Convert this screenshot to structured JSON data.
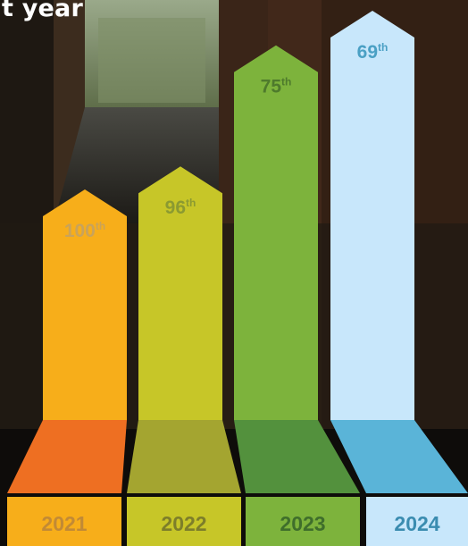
{
  "heading": "t year",
  "chart_data": {
    "type": "bar",
    "categories": [
      "2021",
      "2022",
      "2023",
      "2024"
    ],
    "values": [
      100,
      96,
      75,
      69
    ],
    "rank_labels": [
      {
        "num": "100",
        "suffix": "th"
      },
      {
        "num": "96",
        "suffix": "th"
      },
      {
        "num": "75",
        "suffix": "th"
      },
      {
        "num": "69",
        "suffix": "th"
      }
    ],
    "title": "",
    "xlabel": "",
    "ylabel": "",
    "ylim": [
      60,
      110
    ],
    "y_inverted": true,
    "grid": false,
    "legend": "none",
    "colors": {
      "top": [
        "#f7ae1a",
        "#c7c628",
        "#7db33c",
        "#c8e7fb"
      ],
      "side": [
        "#ee6f22",
        "#a4a530",
        "#53913d",
        "#5ab4d8"
      ],
      "base": [
        "#f7ae1a",
        "#c7c628",
        "#7db33c",
        "#c8e7fb"
      ],
      "rank_text": [
        "#c9a35a",
        "#8b9a31",
        "#4e7a2c",
        "#4aa0c4"
      ],
      "year_text": [
        "#c28a35",
        "#7d7e2a",
        "#3f6e2b",
        "#3a8cb0"
      ]
    }
  }
}
